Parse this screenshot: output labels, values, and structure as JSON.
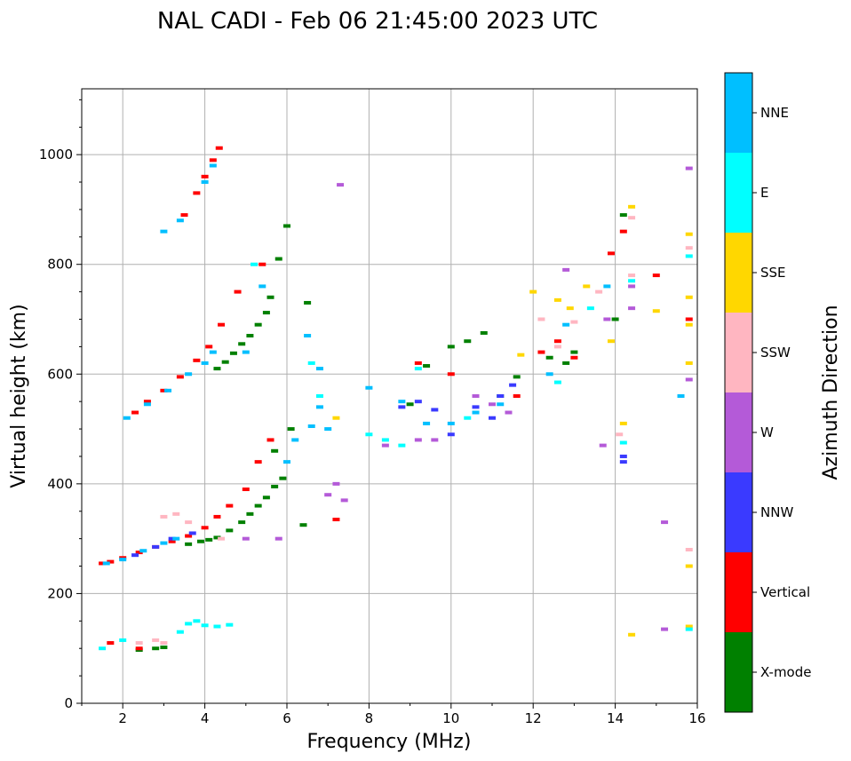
{
  "chart_data": {
    "type": "scatter",
    "title": "NAL CADI - Feb 06 21:45:00 2023 UTC",
    "xlabel": "Frequency (MHz)",
    "ylabel": "Virtual height (km)",
    "xlim": [
      1,
      16
    ],
    "ylim": [
      0,
      1120
    ],
    "xticks": [
      2,
      4,
      6,
      8,
      10,
      12,
      14,
      16
    ],
    "yticks": [
      0,
      200,
      400,
      600,
      800,
      1000
    ],
    "grid": true,
    "colorbar": {
      "label": "Azimuth Direction",
      "categories": [
        {
          "name": "X-mode",
          "color": "#008000"
        },
        {
          "name": "Vertical",
          "color": "#ff0000"
        },
        {
          "name": "NNW",
          "color": "#3a3aff"
        },
        {
          "name": "W",
          "color": "#b45ad8"
        },
        {
          "name": "SSW",
          "color": "#ffb6c1"
        },
        {
          "name": "SSE",
          "color": "#ffd700"
        },
        {
          "name": "E",
          "color": "#00ffff"
        },
        {
          "name": "NNE",
          "color": "#00bfff"
        }
      ]
    },
    "series": [
      {
        "name": "X-mode",
        "points": [
          [
            2.4,
            97
          ],
          [
            2.8,
            100
          ],
          [
            3.0,
            102
          ],
          [
            3.6,
            290
          ],
          [
            3.9,
            295
          ],
          [
            4.1,
            298
          ],
          [
            4.3,
            302
          ],
          [
            4.6,
            315
          ],
          [
            4.9,
            330
          ],
          [
            5.1,
            345
          ],
          [
            5.3,
            360
          ],
          [
            5.5,
            375
          ],
          [
            5.7,
            395
          ],
          [
            5.9,
            410
          ],
          [
            4.3,
            610
          ],
          [
            4.5,
            622
          ],
          [
            4.7,
            638
          ],
          [
            4.9,
            655
          ],
          [
            5.1,
            670
          ],
          [
            5.3,
            690
          ],
          [
            5.5,
            712
          ],
          [
            5.6,
            740
          ],
          [
            5.8,
            810
          ],
          [
            6.0,
            870
          ],
          [
            6.4,
            325
          ],
          [
            6.5,
            730
          ],
          [
            9.0,
            545
          ],
          [
            9.4,
            615
          ],
          [
            10.0,
            650
          ],
          [
            10.4,
            660
          ],
          [
            10.8,
            675
          ],
          [
            11.2,
            560
          ],
          [
            11.6,
            595
          ],
          [
            12.4,
            630
          ],
          [
            12.8,
            620
          ],
          [
            13.0,
            640
          ],
          [
            14.0,
            700
          ],
          [
            14.2,
            890
          ],
          [
            5.7,
            460
          ],
          [
            6.1,
            500
          ]
        ]
      },
      {
        "name": "Vertical",
        "points": [
          [
            1.5,
            255
          ],
          [
            1.7,
            258
          ],
          [
            2.0,
            265
          ],
          [
            2.4,
            275
          ],
          [
            2.8,
            285
          ],
          [
            3.2,
            295
          ],
          [
            3.6,
            305
          ],
          [
            4.0,
            320
          ],
          [
            4.3,
            340
          ],
          [
            4.6,
            360
          ],
          [
            5.0,
            390
          ],
          [
            5.3,
            440
          ],
          [
            5.6,
            480
          ],
          [
            2.3,
            530
          ],
          [
            2.6,
            550
          ],
          [
            3.0,
            570
          ],
          [
            3.4,
            595
          ],
          [
            3.8,
            625
          ],
          [
            4.1,
            650
          ],
          [
            4.4,
            690
          ],
          [
            4.8,
            750
          ],
          [
            5.4,
            800
          ],
          [
            3.5,
            890
          ],
          [
            3.8,
            930
          ],
          [
            4.0,
            960
          ],
          [
            4.2,
            990
          ],
          [
            4.35,
            1012
          ],
          [
            1.7,
            110
          ],
          [
            2.4,
            100
          ],
          [
            7.2,
            335
          ],
          [
            10.0,
            600
          ],
          [
            11.6,
            560
          ],
          [
            12.2,
            640
          ],
          [
            12.6,
            660
          ],
          [
            13.0,
            630
          ],
          [
            13.9,
            820
          ],
          [
            14.2,
            860
          ],
          [
            15.0,
            780
          ],
          [
            15.8,
            700
          ],
          [
            9.2,
            620
          ]
        ]
      },
      {
        "name": "NNW",
        "points": [
          [
            2.3,
            270
          ],
          [
            2.8,
            285
          ],
          [
            3.2,
            300
          ],
          [
            3.7,
            310
          ],
          [
            8.8,
            540
          ],
          [
            9.2,
            550
          ],
          [
            9.6,
            535
          ],
          [
            10.0,
            490
          ],
          [
            10.6,
            540
          ],
          [
            11.0,
            520
          ],
          [
            11.2,
            560
          ],
          [
            11.5,
            580
          ],
          [
            14.2,
            450
          ],
          [
            14.2,
            440
          ]
        ]
      },
      {
        "name": "W",
        "points": [
          [
            7.0,
            380
          ],
          [
            7.2,
            400
          ],
          [
            7.4,
            370
          ],
          [
            5.0,
            300
          ],
          [
            5.8,
            300
          ],
          [
            9.2,
            480
          ],
          [
            9.6,
            480
          ],
          [
            10.6,
            560
          ],
          [
            11.0,
            545
          ],
          [
            11.4,
            530
          ],
          [
            12.8,
            790
          ],
          [
            13.8,
            700
          ],
          [
            14.4,
            720
          ],
          [
            14.4,
            760
          ],
          [
            13.7,
            470
          ],
          [
            15.2,
            330
          ],
          [
            15.2,
            135
          ],
          [
            15.8,
            590
          ],
          [
            15.8,
            975
          ],
          [
            7.3,
            945
          ],
          [
            8.4,
            470
          ]
        ]
      },
      {
        "name": "SSW",
        "points": [
          [
            2.4,
            110
          ],
          [
            2.8,
            115
          ],
          [
            3.0,
            110
          ],
          [
            3.0,
            340
          ],
          [
            3.3,
            345
          ],
          [
            3.6,
            330
          ],
          [
            4.4,
            300
          ],
          [
            12.6,
            650
          ],
          [
            13.0,
            695
          ],
          [
            13.6,
            750
          ],
          [
            14.4,
            780
          ],
          [
            14.4,
            885
          ],
          [
            12.2,
            700
          ],
          [
            15.8,
            280
          ],
          [
            15.8,
            830
          ],
          [
            14.1,
            490
          ]
        ]
      },
      {
        "name": "SSE",
        "points": [
          [
            7.2,
            520
          ],
          [
            12.0,
            750
          ],
          [
            12.6,
            735
          ],
          [
            12.9,
            720
          ],
          [
            13.3,
            760
          ],
          [
            13.9,
            660
          ],
          [
            14.4,
            905
          ],
          [
            14.2,
            510
          ],
          [
            14.4,
            125
          ],
          [
            15.0,
            715
          ],
          [
            15.8,
            690
          ],
          [
            15.8,
            740
          ],
          [
            15.8,
            620
          ],
          [
            15.8,
            250
          ],
          [
            15.8,
            140
          ],
          [
            15.8,
            855
          ],
          [
            11.7,
            635
          ]
        ]
      },
      {
        "name": "E",
        "points": [
          [
            1.5,
            100
          ],
          [
            2.0,
            115
          ],
          [
            3.4,
            130
          ],
          [
            3.6,
            145
          ],
          [
            3.8,
            150
          ],
          [
            4.0,
            142
          ],
          [
            4.3,
            140
          ],
          [
            4.6,
            143
          ],
          [
            6.6,
            620
          ],
          [
            6.8,
            560
          ],
          [
            8.0,
            490
          ],
          [
            8.4,
            480
          ],
          [
            8.8,
            470
          ],
          [
            9.2,
            610
          ],
          [
            10.4,
            520
          ],
          [
            12.6,
            585
          ],
          [
            13.4,
            720
          ],
          [
            14.2,
            475
          ],
          [
            14.4,
            770
          ],
          [
            15.8,
            815
          ],
          [
            15.8,
            135
          ],
          [
            5.2,
            800
          ]
        ]
      },
      {
        "name": "NNE",
        "points": [
          [
            1.6,
            255
          ],
          [
            2.0,
            262
          ],
          [
            2.5,
            278
          ],
          [
            3.0,
            292
          ],
          [
            3.3,
            300
          ],
          [
            2.1,
            520
          ],
          [
            2.6,
            545
          ],
          [
            3.1,
            570
          ],
          [
            3.6,
            600
          ],
          [
            4.0,
            620
          ],
          [
            4.2,
            640
          ],
          [
            4.0,
            950
          ],
          [
            3.0,
            860
          ],
          [
            3.4,
            880
          ],
          [
            4.2,
            980
          ],
          [
            6.0,
            440
          ],
          [
            6.2,
            480
          ],
          [
            6.6,
            505
          ],
          [
            6.8,
            540
          ],
          [
            7.0,
            500
          ],
          [
            6.5,
            670
          ],
          [
            6.8,
            610
          ],
          [
            8.0,
            575
          ],
          [
            8.8,
            550
          ],
          [
            9.4,
            510
          ],
          [
            10.0,
            510
          ],
          [
            10.6,
            530
          ],
          [
            11.2,
            545
          ],
          [
            12.4,
            600
          ],
          [
            12.8,
            690
          ],
          [
            13.8,
            760
          ],
          [
            15.6,
            560
          ],
          [
            5.4,
            760
          ],
          [
            5.0,
            640
          ]
        ]
      }
    ]
  }
}
